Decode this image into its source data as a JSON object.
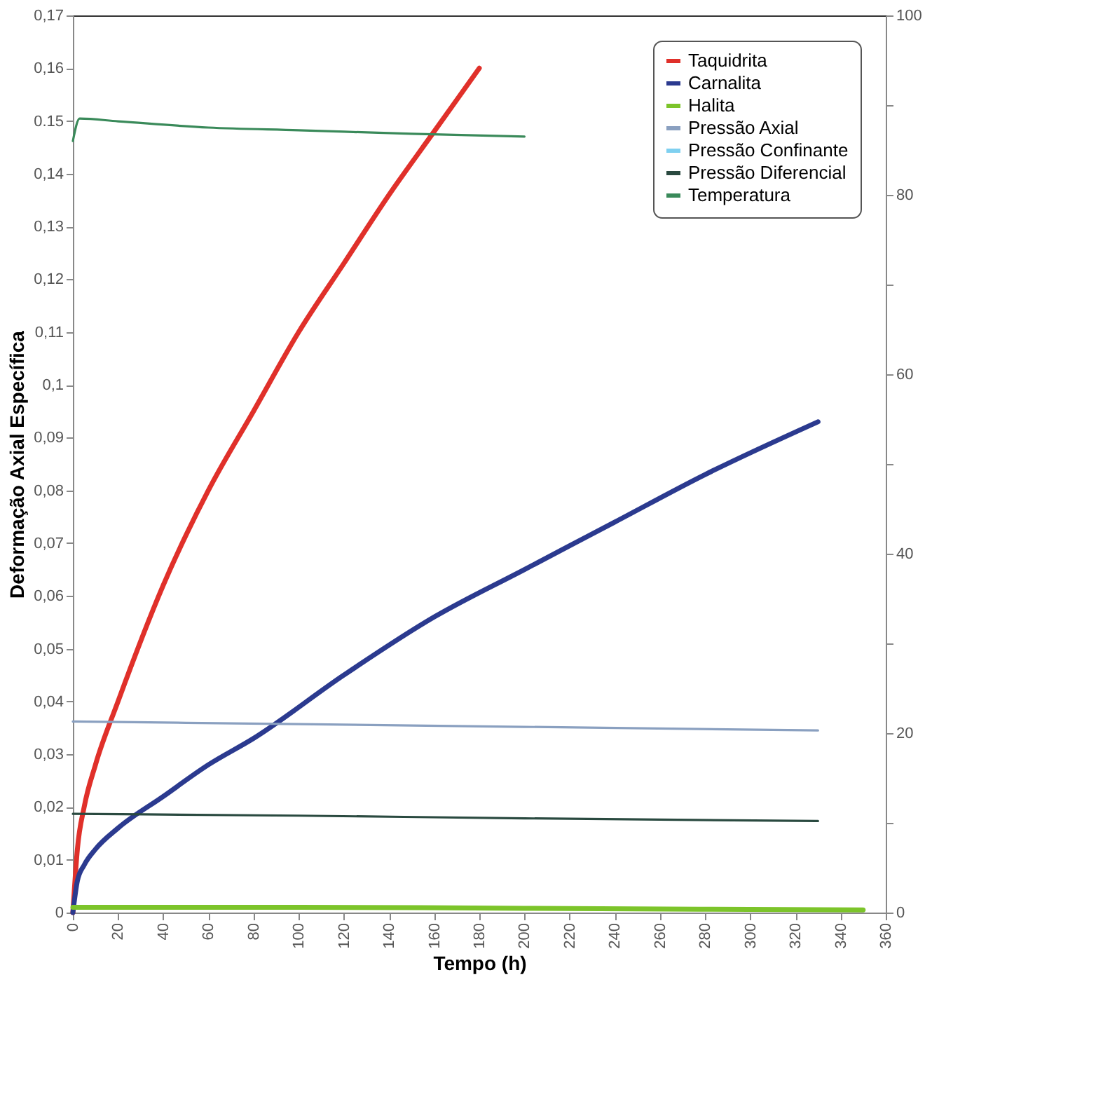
{
  "chart_data": {
    "type": "line",
    "xlabel": "Tempo (h)",
    "ylabel": "Deformação Axial Específica",
    "xlim": [
      0,
      360
    ],
    "xticks": [
      0,
      20,
      40,
      60,
      80,
      100,
      120,
      140,
      160,
      180,
      200,
      220,
      240,
      260,
      280,
      300,
      320,
      340,
      360
    ],
    "ylim": [
      0,
      0.17
    ],
    "yticks": [
      0,
      {
        "value": 0.01,
        "label": "0,01"
      },
      {
        "value": 0.02,
        "label": "0,02"
      },
      {
        "value": 0.03,
        "label": "0,03"
      },
      {
        "value": 0.04,
        "label": "0,04"
      },
      {
        "value": 0.05,
        "label": "0,05"
      },
      {
        "value": 0.06,
        "label": "0,06"
      },
      {
        "value": 0.07,
        "label": "0,07"
      },
      {
        "value": 0.08,
        "label": "0,08"
      },
      {
        "value": 0.09,
        "label": "0,09"
      },
      {
        "value": 0.1,
        "label": "0,1"
      },
      {
        "value": 0.11,
        "label": "0,11"
      },
      {
        "value": 0.12,
        "label": "0,12"
      },
      {
        "value": 0.13,
        "label": "0,13"
      },
      {
        "value": 0.14,
        "label": "0,14"
      },
      0.15,
      {
        "value": 0.16,
        "label": "0,16"
      },
      {
        "value": 0.17,
        "label": "0,17"
      }
    ],
    "y2lim": [
      0,
      100
    ],
    "y2ticks": [
      0,
      {
        "value": 10,
        "label": null
      },
      20,
      {
        "value": 30,
        "label": null
      },
      40,
      {
        "value": 50,
        "label": null
      },
      60,
      {
        "value": 70,
        "label": null
      },
      80,
      {
        "value": 90,
        "label": null
      },
      100
    ],
    "grid": false,
    "legend": "top right",
    "marker": "none",
    "line_style": "solid",
    "series": [
      {
        "name": "Taquidrita",
        "color": "#e0302a",
        "x": [
          0,
          2,
          5,
          10,
          20,
          40,
          60,
          80,
          100,
          120,
          140,
          160,
          180
        ],
        "values": [
          0,
          0.012,
          0.02,
          0.028,
          0.04,
          0.062,
          0.08,
          0.095,
          0.11,
          0.123,
          0.136,
          0.148,
          0.16
        ]
      },
      {
        "name": "Carnalita",
        "color": "#2b3a8f",
        "x": [
          0,
          2,
          5,
          10,
          20,
          40,
          60,
          80,
          120,
          160,
          200,
          240,
          280,
          330
        ],
        "values": [
          0,
          0.006,
          0.009,
          0.012,
          0.016,
          0.022,
          0.028,
          0.033,
          0.045,
          0.056,
          0.065,
          0.074,
          0.083,
          0.093
        ]
      },
      {
        "name": "Halita",
        "color": "#7cc42a",
        "x": [
          0,
          100,
          200,
          350
        ],
        "values": [
          0.001,
          0.001,
          0.0008,
          0.0005
        ]
      },
      {
        "name": "Pressão Axial",
        "color": "#8aa0c0",
        "axis": "y2",
        "x": [
          0,
          100,
          200,
          330
        ],
        "values": [
          21.3,
          21,
          20.7,
          20.3
        ]
      },
      {
        "name": "Pressão Confinante",
        "color": "#7fd0f0",
        "axis": "y2"
      },
      {
        "name": "Pressão Diferencial",
        "color": "#2a4a40",
        "axis": "y2",
        "x": [
          0,
          100,
          200,
          330
        ],
        "values": [
          11,
          10.8,
          10.5,
          10.2
        ]
      },
      {
        "name": "Temperatura",
        "color": "#3a8a5a",
        "axis": "y2",
        "x": [
          0,
          3,
          20,
          60,
          100,
          150,
          200
        ],
        "values": [
          86,
          88.5,
          88.2,
          87.5,
          87.2,
          86.8,
          86.5
        ]
      }
    ]
  }
}
